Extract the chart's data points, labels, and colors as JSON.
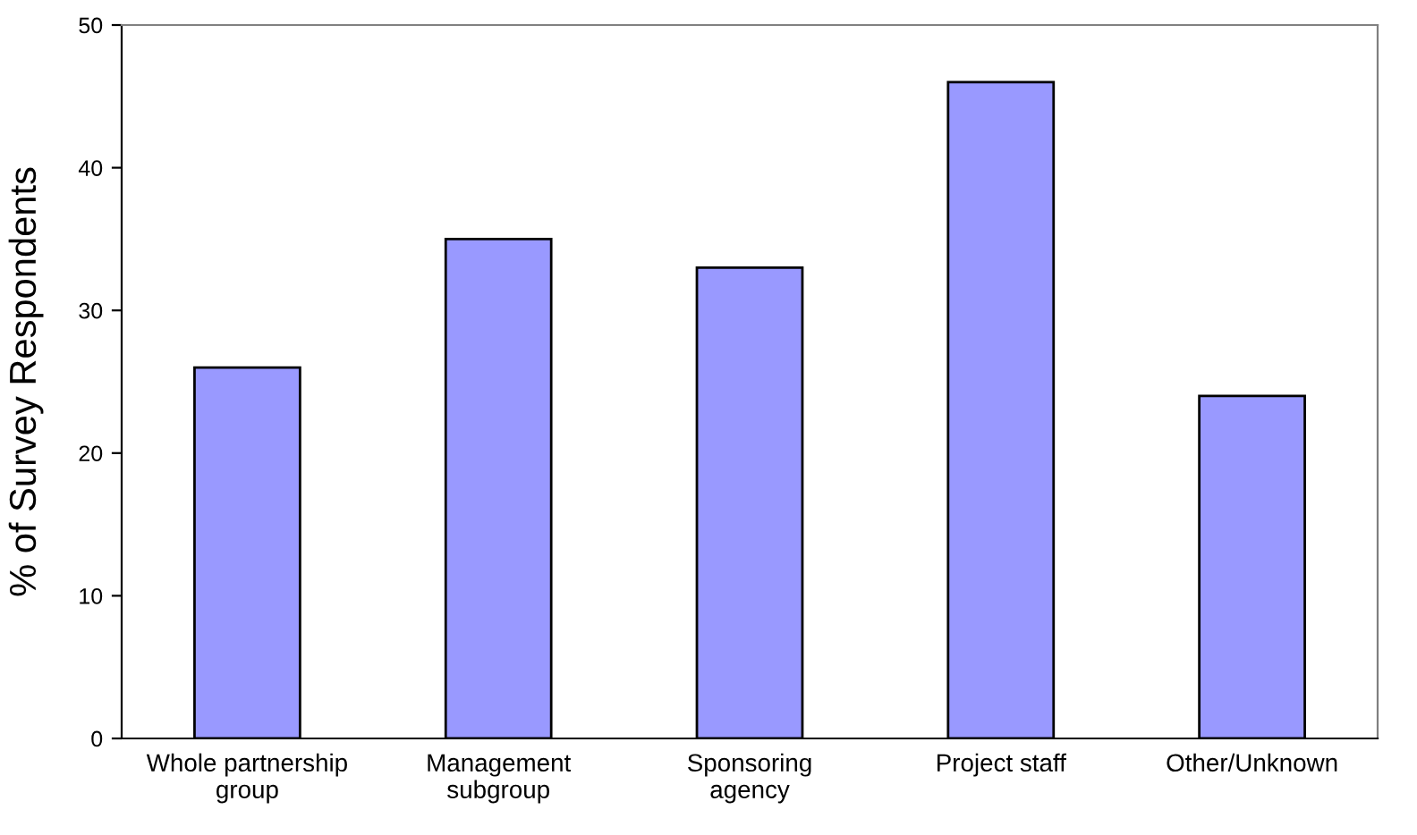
{
  "chart_data": {
    "type": "bar",
    "ylabel": "% of Survey Respondents",
    "categories": [
      "Whole partnership\ngroup",
      "Management\nsubgroup",
      "Sponsoring\nagency",
      "Project staff",
      "Other/Unknown"
    ],
    "values": [
      26,
      35,
      33,
      46,
      24
    ],
    "color": "#9999ff",
    "ylim": [
      0,
      50
    ],
    "yticks": [
      0,
      10,
      20,
      30,
      40,
      50
    ],
    "grid": false
  }
}
